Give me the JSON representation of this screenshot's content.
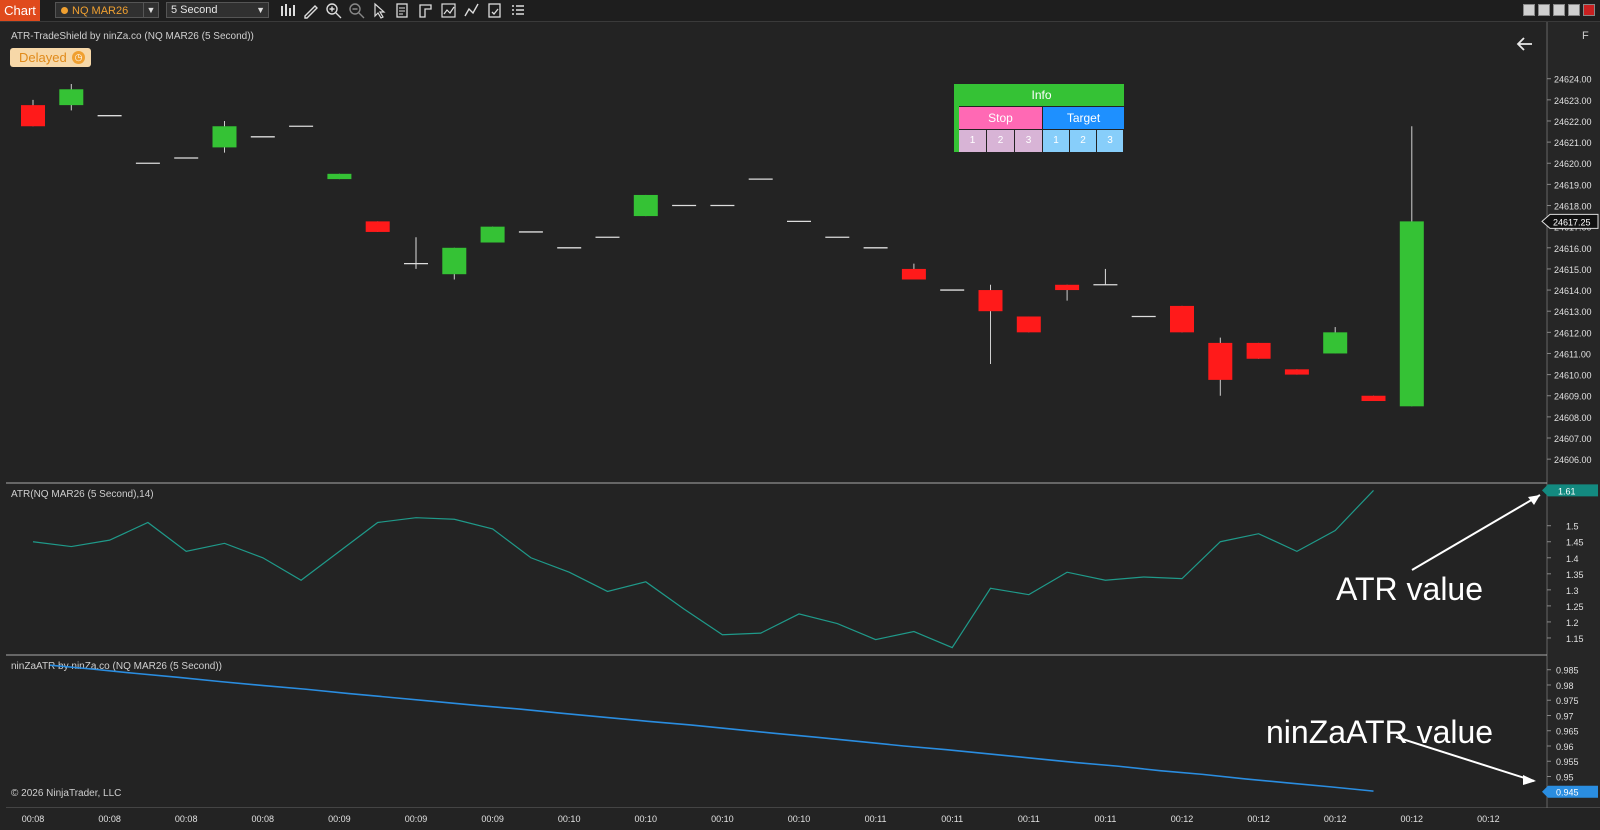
{
  "toolbar": {
    "chart_tab": "Chart",
    "instrument": "NQ MAR26",
    "period": "5 Second",
    "tools": [
      "bar-type-icon",
      "draw-pencil-icon",
      "zoom-in-icon",
      "zoom-out-icon",
      "pointer-icon",
      "data-box-icon",
      "template-icon",
      "indicators-icon",
      "strategies-icon",
      "properties-icon",
      "list-icon"
    ]
  },
  "status": {
    "delayed_label": "Delayed"
  },
  "panels": {
    "price_title": "ATR-TradeShield by ninZa.co (NQ MAR26 (5 Second))",
    "atr_title": "ATR(NQ MAR26 (5 Second),14)",
    "ninza_title": "ninZaATR by ninZa.co (NQ MAR26 (5 Second))",
    "copyright": "© 2026 NinjaTrader, LLC"
  },
  "info_panel": {
    "title": "Info",
    "stop_label": "Stop",
    "target_label": "Target",
    "stop_levels": [
      "1",
      "2",
      "3"
    ],
    "target_levels": [
      "1",
      "2",
      "3"
    ],
    "colors": {
      "header": "#35c235",
      "stop": "#ff69b4",
      "target": "#1e90ff",
      "stop_cell": "#d8b4d6",
      "target_cell": "#87cefa"
    }
  },
  "annotations": {
    "atr": "ATR value",
    "ninza": "ninZaATR value"
  },
  "colors": {
    "up": "#35c235",
    "down": "#ff1a1a",
    "atr_line": "#1f9a8a",
    "ninza_line": "#2a8de0",
    "background": "#232323"
  },
  "chart_data": [
    {
      "type": "candlestick",
      "title": "ATR-TradeShield by ninZa.co (NQ MAR26 (5 Second))",
      "y_ticks": [
        "24624.00",
        "24623.00",
        "24622.00",
        "24621.00",
        "24620.00",
        "24619.00",
        "24618.00",
        "24617.00",
        "24616.00",
        "24615.00",
        "24614.00",
        "24613.00",
        "24612.00",
        "24611.00",
        "24610.00",
        "24609.00",
        "24608.00",
        "24607.00",
        "24606.00"
      ],
      "ylim": [
        24605.25,
        24625.5
      ],
      "last_price": "24617.25",
      "candles": [
        {
          "o": 24622.75,
          "h": 24623.0,
          "l": 24621.75,
          "c": 24621.75
        },
        {
          "o": 24622.75,
          "h": 24623.75,
          "l": 24622.5,
          "c": 24623.5
        },
        {
          "o": 24622.25,
          "h": 24622.25,
          "l": 24622.25,
          "c": 24622.25
        },
        {
          "o": 24620.0,
          "h": 24620.0,
          "l": 24620.0,
          "c": 24620.0
        },
        {
          "o": 24620.25,
          "h": 24620.25,
          "l": 24620.25,
          "c": 24620.25
        },
        {
          "o": 24620.75,
          "h": 24622.0,
          "l": 24620.5,
          "c": 24621.75
        },
        {
          "o": 24621.25,
          "h": 24621.25,
          "l": 24621.25,
          "c": 24621.25
        },
        {
          "o": 24621.75,
          "h": 24621.75,
          "l": 24621.75,
          "c": 24621.75
        },
        {
          "o": 24619.25,
          "h": 24619.5,
          "l": 24619.25,
          "c": 24619.5
        },
        {
          "o": 24617.25,
          "h": 24617.25,
          "l": 24616.75,
          "c": 24616.75
        },
        {
          "o": 24615.25,
          "h": 24616.5,
          "l": 24615.0,
          "c": 24615.25
        },
        {
          "o": 24614.75,
          "h": 24616.0,
          "l": 24614.5,
          "c": 24616.0
        },
        {
          "o": 24616.25,
          "h": 24617.0,
          "l": 24616.25,
          "c": 24617.0
        },
        {
          "o": 24616.75,
          "h": 24616.75,
          "l": 24616.75,
          "c": 24616.75
        },
        {
          "o": 24616.0,
          "h": 24616.0,
          "l": 24616.0,
          "c": 24616.0
        },
        {
          "o": 24616.5,
          "h": 24616.5,
          "l": 24616.5,
          "c": 24616.5
        },
        {
          "o": 24617.5,
          "h": 24618.5,
          "l": 24617.5,
          "c": 24618.5
        },
        {
          "o": 24618.0,
          "h": 24618.0,
          "l": 24618.0,
          "c": 24618.0
        },
        {
          "o": 24618.0,
          "h": 24618.0,
          "l": 24618.0,
          "c": 24618.0
        },
        {
          "o": 24619.25,
          "h": 24619.25,
          "l": 24619.25,
          "c": 24619.25
        },
        {
          "o": 24617.25,
          "h": 24617.25,
          "l": 24617.25,
          "c": 24617.25
        },
        {
          "o": 24616.5,
          "h": 24616.5,
          "l": 24616.5,
          "c": 24616.5
        },
        {
          "o": 24616.0,
          "h": 24616.0,
          "l": 24616.0,
          "c": 24616.0
        },
        {
          "o": 24615.0,
          "h": 24615.25,
          "l": 24614.5,
          "c": 24614.5
        },
        {
          "o": 24614.0,
          "h": 24614.0,
          "l": 24614.0,
          "c": 24614.0
        },
        {
          "o": 24614.0,
          "h": 24614.25,
          "l": 24610.5,
          "c": 24613.0
        },
        {
          "o": 24612.75,
          "h": 24612.75,
          "l": 24612.0,
          "c": 24612.0
        },
        {
          "o": 24614.25,
          "h": 24614.25,
          "l": 24613.5,
          "c": 24614.0
        },
        {
          "o": 24614.25,
          "h": 24615.0,
          "l": 24614.25,
          "c": 24614.25
        },
        {
          "o": 24612.75,
          "h": 24612.75,
          "l": 24612.75,
          "c": 24612.75
        },
        {
          "o": 24613.25,
          "h": 24613.25,
          "l": 24612.0,
          "c": 24612.0
        },
        {
          "o": 24611.5,
          "h": 24611.75,
          "l": 24609.0,
          "c": 24609.75
        },
        {
          "o": 24611.5,
          "h": 24611.5,
          "l": 24610.75,
          "c": 24610.75
        },
        {
          "o": 24610.25,
          "h": 24610.25,
          "l": 24610.0,
          "c": 24610.0
        },
        {
          "o": 24611.0,
          "h": 24612.25,
          "l": 24611.0,
          "c": 24612.0
        },
        {
          "o": 24609.0,
          "h": 24609.0,
          "l": 24608.75,
          "c": 24608.75
        },
        {
          "o": 24608.5,
          "h": 24621.75,
          "l": 24608.5,
          "c": 24617.25
        }
      ],
      "x_ticks": [
        "00:08",
        "00:08",
        "00:08",
        "00:08",
        "00:09",
        "00:09",
        "00:09",
        "00:10",
        "00:10",
        "00:10",
        "00:10",
        "00:11",
        "00:11",
        "00:11",
        "00:11",
        "00:12",
        "00:12",
        "00:12",
        "00:12",
        "00:12"
      ]
    },
    {
      "type": "line",
      "title": "ATR(NQ MAR26 (5 Second),14)",
      "series": [
        {
          "name": "ATR",
          "values": [
            1.45,
            1.435,
            1.455,
            1.51,
            1.42,
            1.445,
            1.4,
            1.33,
            1.42,
            1.51,
            1.525,
            1.52,
            1.49,
            1.4,
            1.355,
            1.295,
            1.325,
            1.24,
            1.16,
            1.165,
            1.225,
            1.195,
            1.145,
            1.17,
            1.12,
            1.305,
            1.285,
            1.355,
            1.33,
            1.34,
            1.335,
            1.45,
            1.475,
            1.42,
            1.485,
            1.61
          ]
        }
      ],
      "y_ticks": [
        "1.5",
        "1.45",
        "1.4",
        "1.35",
        "1.3",
        "1.25",
        "1.2",
        "1.15"
      ],
      "ylim": [
        1.1,
        1.63
      ],
      "last_value": "1.61"
    },
    {
      "type": "line",
      "title": "ninZaATR by ninZa.co (NQ MAR26 (5 Second))",
      "series": [
        {
          "name": "ninZaATR",
          "values": [
            0.9865,
            0.9852,
            0.9838,
            0.9825,
            0.9811,
            0.9798,
            0.9786,
            0.9772,
            0.9759,
            0.9746,
            0.9733,
            0.9721,
            0.9707,
            0.9694,
            0.9681,
            0.9669,
            0.9655,
            0.9641,
            0.9628,
            0.9614,
            0.96,
            0.9588,
            0.9574,
            0.956,
            0.9546,
            0.9534,
            0.9519,
            0.9507,
            0.9492,
            0.9479,
            0.9466,
            0.9452
          ]
        }
      ],
      "y_ticks": [
        "0.985",
        "0.98",
        "0.975",
        "0.97",
        "0.965",
        "0.96",
        "0.955",
        "0.95"
      ],
      "ylim": [
        0.94,
        0.9895
      ],
      "last_value": "0.945"
    }
  ]
}
